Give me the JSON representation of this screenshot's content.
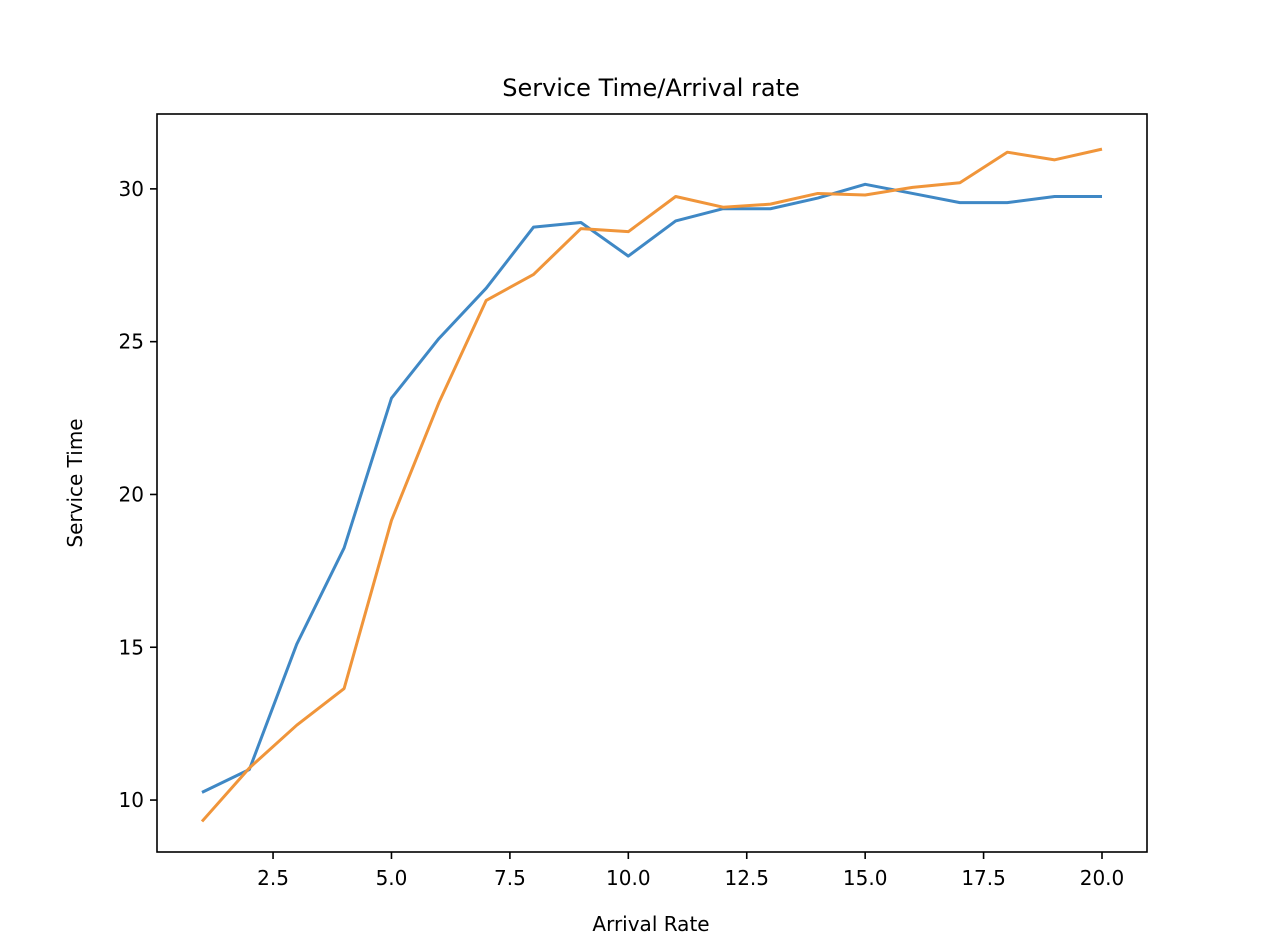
{
  "chart_data": {
    "type": "line",
    "title": "Service Time/Arrival rate",
    "xlabel": "Arrival Rate",
    "ylabel": "Service Time",
    "x": [
      1,
      2,
      3,
      4,
      5,
      6,
      7,
      8,
      9,
      10,
      11,
      12,
      13,
      14,
      15,
      16,
      17,
      18,
      19,
      20
    ],
    "series": [
      {
        "color": "#3f88c5",
        "values": [
          10.25,
          11.0,
          15.1,
          18.25,
          23.15,
          25.1,
          26.75,
          28.75,
          28.9,
          27.8,
          28.95,
          29.35,
          29.35,
          29.7,
          30.15,
          29.85,
          29.55,
          29.55,
          29.75,
          29.75
        ]
      },
      {
        "color": "#f0953a",
        "values": [
          9.3,
          11.05,
          12.45,
          13.65,
          19.15,
          23.0,
          26.35,
          27.2,
          28.7,
          28.6,
          29.75,
          29.4,
          29.5,
          29.85,
          29.8,
          30.05,
          30.2,
          31.2,
          30.95,
          31.3
        ]
      }
    ],
    "xlim": [
      0.05,
      20.95
    ],
    "ylim": [
      8.3,
      32.45
    ],
    "xticks": [
      2.5,
      5.0,
      7.5,
      10.0,
      12.5,
      15.0,
      17.5,
      20.0
    ],
    "xtick_labels": [
      "2.5",
      "5.0",
      "7.5",
      "10.0",
      "12.5",
      "15.0",
      "17.5",
      "20.0"
    ],
    "yticks": [
      10,
      15,
      20,
      25,
      30
    ],
    "ytick_labels": [
      "10",
      "15",
      "20",
      "25",
      "30"
    ],
    "grid": false,
    "legend": "none"
  }
}
